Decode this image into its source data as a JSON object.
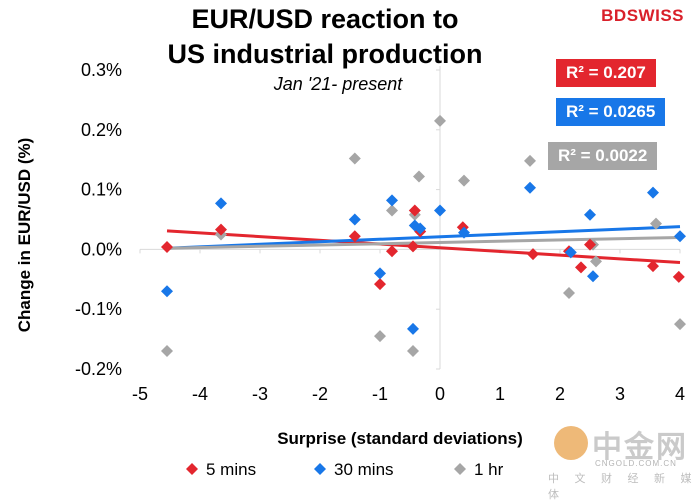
{
  "brand": "BDSWISS",
  "colors": {
    "five_min": "#e3262e",
    "thirty_min": "#1877e8",
    "one_hr": "#a6a6a6"
  },
  "watermark": {
    "name": "中金网",
    "url": "CNGOLD.COM.CN",
    "subtitle": "中 文 财 经 新 媒 体"
  },
  "chart_data": {
    "type": "scatter",
    "title": [
      "EUR/USD reaction to",
      "US industrial production"
    ],
    "subtitle": "Jan '21- present",
    "xlabel": "Surprise (standard deviations)",
    "ylabel": "Change in EUR/USD  (%)",
    "xlim": [
      -5,
      4
    ],
    "ylim": [
      -0.2,
      0.3
    ],
    "xticks": [
      -5,
      -4,
      -3,
      -2,
      -1,
      0,
      1,
      2,
      3,
      4
    ],
    "xtick_labels": [
      "-5",
      "-4",
      "-3",
      "-2",
      "-1",
      "0",
      "1",
      "2",
      "3",
      "4"
    ],
    "yticks": [
      -0.2,
      -0.1,
      0.0,
      0.1,
      0.2,
      0.3
    ],
    "ytick_labels": [
      "-0.2%",
      "-0.1%",
      "0.0%",
      "0.1%",
      "0.2%",
      "0.3%"
    ],
    "series": [
      {
        "name": "5 mins",
        "color": "#e3262e",
        "r2_label": "R² = 0.207",
        "points": [
          [
            -4.55,
            0.004
          ],
          [
            -3.65,
            0.033
          ],
          [
            -1.42,
            0.022
          ],
          [
            -1.0,
            -0.058
          ],
          [
            -0.8,
            -0.003
          ],
          [
            -0.42,
            0.065
          ],
          [
            -0.45,
            0.005
          ],
          [
            -0.33,
            0.03
          ],
          [
            0.38,
            0.037
          ],
          [
            1.55,
            -0.008
          ],
          [
            2.15,
            -0.003
          ],
          [
            2.35,
            -0.03
          ],
          [
            2.5,
            0.008
          ],
          [
            3.55,
            -0.028
          ],
          [
            3.98,
            -0.046
          ]
        ],
        "trend": [
          [
            -4.55,
            0.031
          ],
          [
            4.0,
            -0.022
          ]
        ]
      },
      {
        "name": "30 mins",
        "color": "#1877e8",
        "r2_label": "R² = 0.0265",
        "points": [
          [
            -4.55,
            -0.07
          ],
          [
            -3.65,
            0.077
          ],
          [
            -1.42,
            0.05
          ],
          [
            -1.0,
            -0.04
          ],
          [
            -0.8,
            0.082
          ],
          [
            -0.45,
            -0.133
          ],
          [
            -0.42,
            0.04
          ],
          [
            -0.33,
            0.035
          ],
          [
            0.0,
            0.065
          ],
          [
            0.4,
            0.028
          ],
          [
            1.5,
            0.103
          ],
          [
            2.18,
            -0.005
          ],
          [
            2.5,
            0.058
          ],
          [
            2.55,
            -0.045
          ],
          [
            3.55,
            0.095
          ],
          [
            4.0,
            0.022
          ]
        ],
        "trend": [
          [
            -4.55,
            0.002
          ],
          [
            4.0,
            0.038
          ]
        ]
      },
      {
        "name": "1 hr",
        "color": "#a6a6a6",
        "r2_label": "R² = 0.0022",
        "points": [
          [
            -4.55,
            -0.17
          ],
          [
            -3.65,
            0.025
          ],
          [
            -1.42,
            0.152
          ],
          [
            -1.0,
            -0.145
          ],
          [
            -0.8,
            0.065
          ],
          [
            -0.45,
            -0.17
          ],
          [
            -0.42,
            0.058
          ],
          [
            -0.35,
            0.122
          ],
          [
            0.0,
            0.215
          ],
          [
            0.4,
            0.115
          ],
          [
            1.5,
            0.148
          ],
          [
            2.15,
            -0.073
          ],
          [
            2.55,
            0.008
          ],
          [
            2.6,
            -0.02
          ],
          [
            3.6,
            0.043
          ],
          [
            4.0,
            -0.125
          ]
        ],
        "trend": [
          [
            -4.55,
            0.002
          ],
          [
            4.0,
            0.02
          ]
        ]
      }
    ],
    "legend_position": "bottom"
  }
}
